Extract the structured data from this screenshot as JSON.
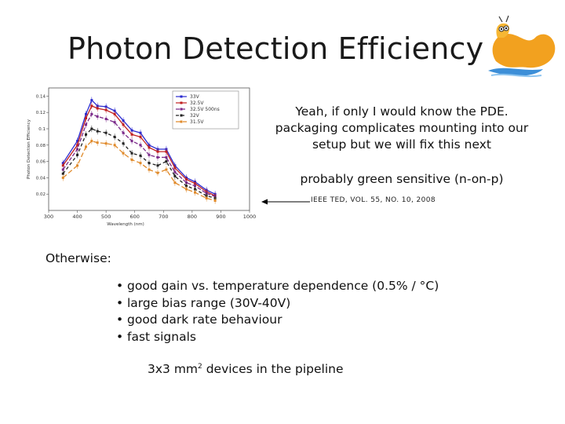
{
  "slide": {
    "title": "Photon Detection Efficiency",
    "note_lines": [
      "Yeah, if only I would know the PDE.",
      "packaging complicates mounting into our",
      "setup but we will fix this next"
    ],
    "note_green": "probably green sensitive (n-on-p)",
    "citation": "IEEE TED, VOL. 55, NO. 10, 2008",
    "otherwise_label": "Otherwise:",
    "bullets": [
      "good gain vs. temperature dependence (0.5% / °C)",
      "large bias range (30V-40V)",
      "good dark rate behaviour",
      "fast signals"
    ],
    "pipeline_prefix": "3x3 mm",
    "pipeline_superscript": "2",
    "pipeline_suffix": " devices in the pipeline"
  },
  "chart_data": {
    "type": "line",
    "xlabel": "Wavelength (nm)",
    "ylabel": "Photon Detection Efficiency",
    "xlim": [
      300,
      1000
    ],
    "ylim": [
      0,
      0.15
    ],
    "xticks": [
      300,
      400,
      500,
      600,
      700,
      800,
      900,
      1000
    ],
    "yticks": [
      0.02,
      0.04,
      0.06,
      0.08,
      0.1,
      0.12,
      0.14
    ],
    "legend_position": "top-right",
    "series": [
      {
        "name": "33V",
        "color": "#2b2bd0",
        "dash": "",
        "points": [
          [
            350,
            0.058
          ],
          [
            400,
            0.085
          ],
          [
            430,
            0.118
          ],
          [
            450,
            0.135
          ],
          [
            470,
            0.128
          ],
          [
            500,
            0.127
          ],
          [
            530,
            0.122
          ],
          [
            560,
            0.11
          ],
          [
            590,
            0.098
          ],
          [
            620,
            0.095
          ],
          [
            650,
            0.08
          ],
          [
            680,
            0.075
          ],
          [
            710,
            0.075
          ],
          [
            740,
            0.055
          ],
          [
            780,
            0.04
          ],
          [
            810,
            0.035
          ],
          [
            850,
            0.025
          ],
          [
            880,
            0.02
          ]
        ]
      },
      {
        "name": "32.5V",
        "color": "#c02020",
        "dash": "",
        "points": [
          [
            350,
            0.055
          ],
          [
            400,
            0.08
          ],
          [
            430,
            0.113
          ],
          [
            450,
            0.128
          ],
          [
            470,
            0.125
          ],
          [
            500,
            0.123
          ],
          [
            530,
            0.118
          ],
          [
            560,
            0.105
          ],
          [
            590,
            0.093
          ],
          [
            620,
            0.09
          ],
          [
            650,
            0.077
          ],
          [
            680,
            0.072
          ],
          [
            710,
            0.072
          ],
          [
            740,
            0.052
          ],
          [
            780,
            0.038
          ],
          [
            810,
            0.033
          ],
          [
            850,
            0.023
          ],
          [
            880,
            0.018
          ]
        ]
      },
      {
        "name": "32.5V 500ns",
        "color": "#7b2a8a",
        "dash": "5,2",
        "points": [
          [
            350,
            0.05
          ],
          [
            400,
            0.075
          ],
          [
            430,
            0.105
          ],
          [
            450,
            0.118
          ],
          [
            470,
            0.115
          ],
          [
            500,
            0.112
          ],
          [
            530,
            0.108
          ],
          [
            560,
            0.095
          ],
          [
            590,
            0.085
          ],
          [
            620,
            0.08
          ],
          [
            650,
            0.068
          ],
          [
            680,
            0.065
          ],
          [
            710,
            0.065
          ],
          [
            740,
            0.047
          ],
          [
            780,
            0.034
          ],
          [
            810,
            0.03
          ],
          [
            850,
            0.021
          ],
          [
            880,
            0.017
          ]
        ]
      },
      {
        "name": "32V",
        "color": "#222222",
        "dash": "4,3",
        "points": [
          [
            350,
            0.045
          ],
          [
            400,
            0.068
          ],
          [
            430,
            0.093
          ],
          [
            450,
            0.1
          ],
          [
            470,
            0.097
          ],
          [
            500,
            0.095
          ],
          [
            530,
            0.09
          ],
          [
            560,
            0.082
          ],
          [
            590,
            0.07
          ],
          [
            620,
            0.067
          ],
          [
            650,
            0.058
          ],
          [
            680,
            0.055
          ],
          [
            710,
            0.06
          ],
          [
            740,
            0.042
          ],
          [
            780,
            0.03
          ],
          [
            810,
            0.026
          ],
          [
            850,
            0.018
          ],
          [
            880,
            0.015
          ]
        ]
      },
      {
        "name": "31.5V",
        "color": "#e08a2a",
        "dash": "6,3",
        "points": [
          [
            350,
            0.04
          ],
          [
            400,
            0.055
          ],
          [
            430,
            0.078
          ],
          [
            450,
            0.085
          ],
          [
            470,
            0.083
          ],
          [
            500,
            0.082
          ],
          [
            530,
            0.08
          ],
          [
            560,
            0.07
          ],
          [
            590,
            0.062
          ],
          [
            620,
            0.058
          ],
          [
            650,
            0.05
          ],
          [
            680,
            0.046
          ],
          [
            710,
            0.05
          ],
          [
            740,
            0.034
          ],
          [
            780,
            0.026
          ],
          [
            810,
            0.022
          ],
          [
            850,
            0.015
          ],
          [
            880,
            0.012
          ]
        ]
      }
    ]
  }
}
